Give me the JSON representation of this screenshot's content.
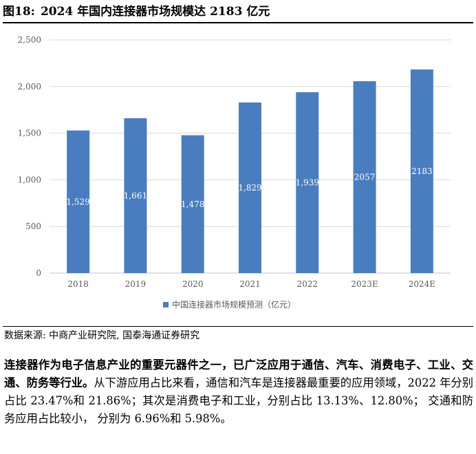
{
  "figure": {
    "number": "图18:",
    "title": "2024 年国内连接器市场规模达 2183 亿元"
  },
  "source": "数据来源: 中商产业研究院, 国泰海通证券研究",
  "paragraph": {
    "lead": "连接器作为电子信息产业的重要元器件之一，已广泛应用于通信、汽车、消费电子、工业、交通、防务等行业。",
    "body": "从下游应用占比来看，通信和汽车是连接器最重要的应用领域，2022 年分别占比 23.47%和 21.86%；其次是消费电子和工业，分别占比 13.13%、12.80%； 交通和防务应用占比较小， 分别为 6.96%和 5.98%。"
  },
  "colors": {
    "bar": "#4a7dbf",
    "grid": "#d9d9d9",
    "axis_text": "#595959"
  },
  "chart_data": {
    "type": "bar",
    "categories": [
      "2018",
      "2019",
      "2020",
      "2021",
      "2022",
      "2023E",
      "2024E"
    ],
    "series": [
      {
        "name": "中国连接器市场规模预测（亿元）",
        "values": [
          1529,
          1661,
          1478,
          1829,
          1939,
          2057,
          2183
        ],
        "labels": [
          "1,529",
          "1,661",
          "1,478",
          "1,829",
          "1,939",
          "2057",
          "2183"
        ]
      }
    ],
    "yticks": [
      "0",
      "500",
      "1,000",
      "1,500",
      "2,000",
      "2,500"
    ],
    "ylim": [
      0,
      2500
    ],
    "grid": true,
    "legend": "bottom"
  }
}
